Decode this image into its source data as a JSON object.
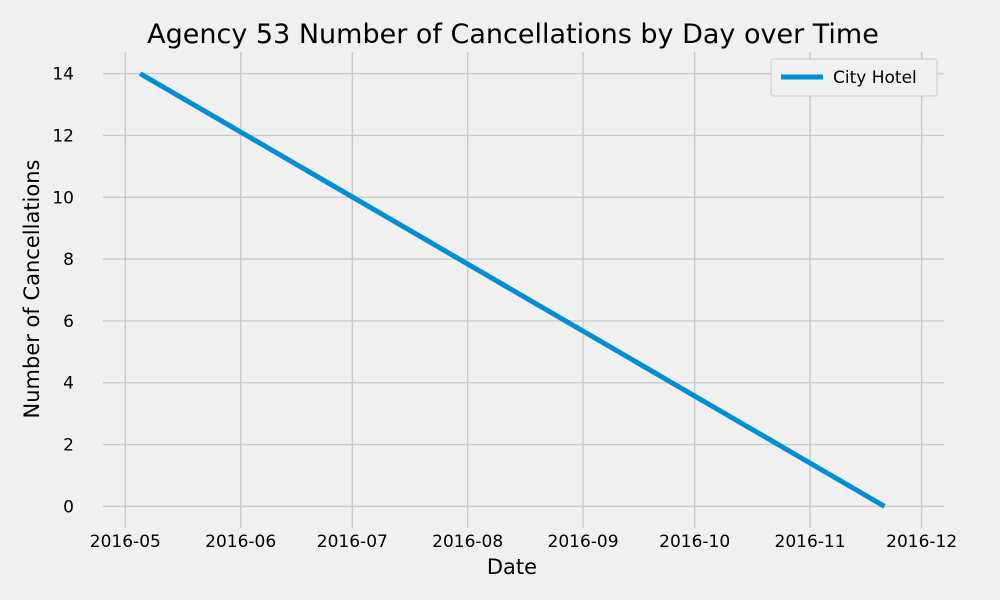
{
  "chart_data": {
    "type": "line",
    "title": "Agency 53 Number of Cancellations by Day over Time",
    "xlabel": "Date",
    "ylabel": "Number of Cancellations",
    "xlim": [
      "2016-04-25",
      "2016-12-07"
    ],
    "ylim": [
      -0.7,
      14.7
    ],
    "x_ticks": [
      "2016-05",
      "2016-06",
      "2016-07",
      "2016-08",
      "2016-09",
      "2016-10",
      "2016-11",
      "2016-12"
    ],
    "x_tick_dates": [
      "2016-05-01",
      "2016-06-01",
      "2016-07-01",
      "2016-08-01",
      "2016-09-01",
      "2016-10-01",
      "2016-11-01",
      "2016-12-01"
    ],
    "y_ticks": [
      0,
      2,
      4,
      6,
      8,
      10,
      12,
      14
    ],
    "grid": true,
    "legend_position": "top-right",
    "series": [
      {
        "name": "City Hotel",
        "color": "#008fd5",
        "x": [
          "2016-05-05",
          "2016-11-21"
        ],
        "y": [
          14,
          0
        ]
      }
    ]
  }
}
